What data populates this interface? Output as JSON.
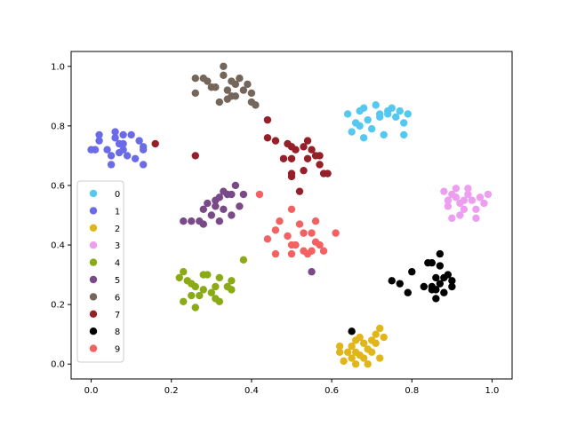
{
  "chart_data": {
    "type": "scatter",
    "title": "",
    "xlabel": "",
    "ylabel": "",
    "xlim": [
      -0.05,
      1.05
    ],
    "ylim": [
      -0.05,
      1.05
    ],
    "xticks": [
      0.0,
      0.2,
      0.4,
      0.6,
      0.8,
      1.0
    ],
    "yticks": [
      0.0,
      0.2,
      0.4,
      0.6,
      0.8,
      1.0
    ],
    "xtick_labels": [
      "0.0",
      "0.2",
      "0.4",
      "0.6",
      "0.8",
      "1.0"
    ],
    "ytick_labels": [
      "0.0",
      "0.2",
      "0.4",
      "0.6",
      "0.8",
      "1.0"
    ],
    "grid": false,
    "legend_position": "left",
    "series": [
      {
        "name": "0",
        "color": "#55c8f0",
        "points": [
          [
            0.64,
            0.84
          ],
          [
            0.65,
            0.78
          ],
          [
            0.66,
            0.81
          ],
          [
            0.67,
            0.85
          ],
          [
            0.68,
            0.86
          ],
          [
            0.69,
            0.82
          ],
          [
            0.7,
            0.79
          ],
          [
            0.68,
            0.76
          ],
          [
            0.71,
            0.87
          ],
          [
            0.72,
            0.83
          ],
          [
            0.72,
            0.84
          ],
          [
            0.73,
            0.77
          ],
          [
            0.74,
            0.85
          ],
          [
            0.75,
            0.86
          ],
          [
            0.76,
            0.83
          ],
          [
            0.77,
            0.85
          ],
          [
            0.78,
            0.81
          ],
          [
            0.78,
            0.77
          ],
          [
            0.79,
            0.84
          ],
          [
            0.67,
            0.8
          ],
          [
            0.74,
            0.84
          ]
        ]
      },
      {
        "name": "1",
        "color": "#6b6be8",
        "points": [
          [
            0.0,
            0.72
          ],
          [
            0.01,
            0.72
          ],
          [
            0.02,
            0.77
          ],
          [
            0.02,
            0.75
          ],
          [
            0.04,
            0.72
          ],
          [
            0.05,
            0.7
          ],
          [
            0.05,
            0.67
          ],
          [
            0.06,
            0.76
          ],
          [
            0.06,
            0.78
          ],
          [
            0.07,
            0.74
          ],
          [
            0.07,
            0.71
          ],
          [
            0.08,
            0.74
          ],
          [
            0.08,
            0.77
          ],
          [
            0.09,
            0.7
          ],
          [
            0.1,
            0.77
          ],
          [
            0.11,
            0.69
          ],
          [
            0.12,
            0.75
          ],
          [
            0.13,
            0.72
          ],
          [
            0.13,
            0.67
          ],
          [
            0.13,
            0.73
          ],
          [
            0.08,
            0.72
          ]
        ]
      },
      {
        "name": "2",
        "color": "#e0b61a",
        "points": [
          [
            0.62,
            0.06
          ],
          [
            0.62,
            0.04
          ],
          [
            0.63,
            0.01
          ],
          [
            0.64,
            0.04
          ],
          [
            0.65,
            0.06
          ],
          [
            0.65,
            0.02
          ],
          [
            0.66,
            0.08
          ],
          [
            0.66,
            0.04
          ],
          [
            0.67,
            0.03
          ],
          [
            0.67,
            0.09
          ],
          [
            0.68,
            0.07
          ],
          [
            0.68,
            0.02
          ],
          [
            0.69,
            0.05
          ],
          [
            0.69,
            0.0
          ],
          [
            0.7,
            0.08
          ],
          [
            0.7,
            0.04
          ],
          [
            0.71,
            0.1
          ],
          [
            0.71,
            0.07
          ],
          [
            0.72,
            0.12
          ],
          [
            0.72,
            0.02
          ],
          [
            0.73,
            0.09
          ],
          [
            0.66,
            0.0
          ]
        ]
      },
      {
        "name": "3",
        "color": "#ee9ef0",
        "points": [
          [
            0.88,
            0.58
          ],
          [
            0.89,
            0.55
          ],
          [
            0.89,
            0.53
          ],
          [
            0.9,
            0.49
          ],
          [
            0.9,
            0.57
          ],
          [
            0.91,
            0.59
          ],
          [
            0.92,
            0.54
          ],
          [
            0.92,
            0.5
          ],
          [
            0.93,
            0.55
          ],
          [
            0.93,
            0.52
          ],
          [
            0.94,
            0.59
          ],
          [
            0.94,
            0.57
          ],
          [
            0.95,
            0.55
          ],
          [
            0.96,
            0.49
          ],
          [
            0.96,
            0.52
          ],
          [
            0.97,
            0.56
          ],
          [
            0.98,
            0.54
          ],
          [
            0.99,
            0.57
          ],
          [
            0.91,
            0.56
          ]
        ]
      },
      {
        "name": "4",
        "color": "#8aab16",
        "points": [
          [
            0.22,
            0.29
          ],
          [
            0.23,
            0.31
          ],
          [
            0.23,
            0.21
          ],
          [
            0.24,
            0.28
          ],
          [
            0.25,
            0.23
          ],
          [
            0.25,
            0.27
          ],
          [
            0.26,
            0.26
          ],
          [
            0.26,
            0.19
          ],
          [
            0.27,
            0.23
          ],
          [
            0.28,
            0.3
          ],
          [
            0.28,
            0.25
          ],
          [
            0.29,
            0.3
          ],
          [
            0.3,
            0.24
          ],
          [
            0.31,
            0.26
          ],
          [
            0.31,
            0.22
          ],
          [
            0.32,
            0.21
          ],
          [
            0.32,
            0.29
          ],
          [
            0.34,
            0.26
          ],
          [
            0.35,
            0.25
          ],
          [
            0.35,
            0.28
          ],
          [
            0.38,
            0.35
          ]
        ]
      },
      {
        "name": "5",
        "color": "#7a4a88",
        "points": [
          [
            0.23,
            0.48
          ],
          [
            0.25,
            0.48
          ],
          [
            0.27,
            0.48
          ],
          [
            0.28,
            0.47
          ],
          [
            0.28,
            0.52
          ],
          [
            0.29,
            0.54
          ],
          [
            0.3,
            0.5
          ],
          [
            0.31,
            0.55
          ],
          [
            0.32,
            0.56
          ],
          [
            0.32,
            0.48
          ],
          [
            0.33,
            0.58
          ],
          [
            0.33,
            0.52
          ],
          [
            0.34,
            0.57
          ],
          [
            0.35,
            0.5
          ],
          [
            0.35,
            0.57
          ],
          [
            0.36,
            0.6
          ],
          [
            0.37,
            0.53
          ],
          [
            0.38,
            0.57
          ],
          [
            0.55,
            0.31
          ],
          [
            0.31,
            0.53
          ]
        ]
      },
      {
        "name": "6",
        "color": "#74665a",
        "points": [
          [
            0.26,
            0.96
          ],
          [
            0.26,
            0.91
          ],
          [
            0.28,
            0.96
          ],
          [
            0.29,
            0.95
          ],
          [
            0.3,
            0.93
          ],
          [
            0.31,
            0.93
          ],
          [
            0.32,
            0.88
          ],
          [
            0.33,
            1.0
          ],
          [
            0.33,
            0.97
          ],
          [
            0.34,
            0.92
          ],
          [
            0.34,
            0.89
          ],
          [
            0.35,
            0.9
          ],
          [
            0.36,
            0.9
          ],
          [
            0.36,
            0.94
          ],
          [
            0.37,
            0.96
          ],
          [
            0.38,
            0.92
          ],
          [
            0.39,
            0.94
          ],
          [
            0.4,
            0.91
          ],
          [
            0.41,
            0.87
          ],
          [
            0.4,
            0.88
          ],
          [
            0.35,
            0.95
          ]
        ]
      },
      {
        "name": "7",
        "color": "#95202a",
        "points": [
          [
            0.16,
            0.74
          ],
          [
            0.26,
            0.7
          ],
          [
            0.44,
            0.82
          ],
          [
            0.44,
            0.76
          ],
          [
            0.46,
            0.75
          ],
          [
            0.48,
            0.69
          ],
          [
            0.49,
            0.74
          ],
          [
            0.5,
            0.73
          ],
          [
            0.5,
            0.69
          ],
          [
            0.5,
            0.64
          ],
          [
            0.51,
            0.72
          ],
          [
            0.52,
            0.58
          ],
          [
            0.53,
            0.73
          ],
          [
            0.53,
            0.65
          ],
          [
            0.54,
            0.75
          ],
          [
            0.54,
            0.69
          ],
          [
            0.55,
            0.72
          ],
          [
            0.56,
            0.7
          ],
          [
            0.57,
            0.7
          ],
          [
            0.57,
            0.67
          ],
          [
            0.58,
            0.64
          ],
          [
            0.59,
            0.64
          ],
          [
            0.5,
            0.63
          ]
        ]
      },
      {
        "name": "8",
        "color": "#000000",
        "points": [
          [
            0.75,
            0.28
          ],
          [
            0.77,
            0.27
          ],
          [
            0.79,
            0.24
          ],
          [
            0.8,
            0.31
          ],
          [
            0.83,
            0.26
          ],
          [
            0.84,
            0.34
          ],
          [
            0.85,
            0.34
          ],
          [
            0.85,
            0.25
          ],
          [
            0.86,
            0.22
          ],
          [
            0.86,
            0.29
          ],
          [
            0.86,
            0.25
          ],
          [
            0.87,
            0.37
          ],
          [
            0.87,
            0.33
          ],
          [
            0.87,
            0.27
          ],
          [
            0.88,
            0.24
          ],
          [
            0.88,
            0.29
          ],
          [
            0.89,
            0.3
          ],
          [
            0.9,
            0.26
          ],
          [
            0.9,
            0.28
          ],
          [
            0.65,
            0.11
          ],
          [
            0.85,
            0.26
          ]
        ]
      },
      {
        "name": "9",
        "color": "#f26262",
        "points": [
          [
            0.42,
            0.57
          ],
          [
            0.44,
            0.42
          ],
          [
            0.46,
            0.37
          ],
          [
            0.46,
            0.45
          ],
          [
            0.47,
            0.48
          ],
          [
            0.49,
            0.43
          ],
          [
            0.5,
            0.52
          ],
          [
            0.5,
            0.37
          ],
          [
            0.5,
            0.4
          ],
          [
            0.51,
            0.4
          ],
          [
            0.52,
            0.47
          ],
          [
            0.53,
            0.38
          ],
          [
            0.53,
            0.44
          ],
          [
            0.54,
            0.37
          ],
          [
            0.55,
            0.44
          ],
          [
            0.55,
            0.38
          ],
          [
            0.56,
            0.48
          ],
          [
            0.56,
            0.41
          ],
          [
            0.57,
            0.4
          ],
          [
            0.58,
            0.38
          ],
          [
            0.61,
            0.44
          ]
        ]
      }
    ]
  }
}
